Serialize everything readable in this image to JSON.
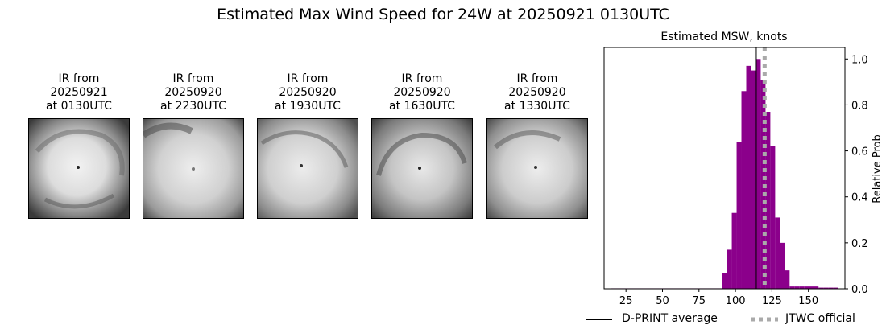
{
  "suptitle": "Estimated Max Wind Speed for 24W at 20250921 0130UTC",
  "panels": [
    {
      "line1": "IR from",
      "line2": "20250921",
      "line3": "at 0130UTC"
    },
    {
      "line1": "IR from",
      "line2": "20250920",
      "line3": "at 2230UTC"
    },
    {
      "line1": "IR from",
      "line2": "20250920",
      "line3": "at 1930UTC"
    },
    {
      "line1": "IR from",
      "line2": "20250920",
      "line3": "at 1630UTC"
    },
    {
      "line1": "IR from",
      "line2": "20250920",
      "line3": "at 1330UTC"
    }
  ],
  "chart_data": {
    "type": "bar",
    "title": "Estimated MSW, knots",
    "xlabel": "",
    "ylabel": "Relative Prob",
    "xlim": [
      10,
      175
    ],
    "ylim": [
      0,
      1.05
    ],
    "xticks": [
      25,
      50,
      75,
      100,
      125,
      150
    ],
    "yticks": [
      0.0,
      0.2,
      0.4,
      0.6,
      0.8,
      1.0
    ],
    "ytick_labels": [
      "0.0",
      "0.2",
      "0.4",
      "0.6",
      "0.8",
      "1.0"
    ],
    "y_axis_side": "right",
    "bar_width": 3.3,
    "bar_color": "#8b008b",
    "bins": [
      15,
      18.3,
      21.6,
      24.9,
      28.2,
      31.5,
      34.8,
      38.1,
      41.4,
      44.7,
      48,
      51.3,
      54.6,
      57.9,
      61.2,
      64.5,
      67.8,
      71.1,
      74.4,
      77.7,
      81,
      84.3,
      87.6,
      90.9,
      94.2,
      97.5,
      100.8,
      104.1,
      107.4,
      110.7,
      114,
      117.3,
      120.6,
      123.9,
      127.2,
      130.5,
      133.8,
      137.1,
      140.4,
      143.7,
      147,
      150.3,
      153.6,
      156.9,
      160.2,
      163.5,
      166.8
    ],
    "values": [
      0.002,
      0.002,
      0.002,
      0.002,
      0.002,
      0.002,
      0.002,
      0.002,
      0.002,
      0.002,
      0.002,
      0.002,
      0.002,
      0.002,
      0.002,
      0.002,
      0.002,
      0.002,
      0.002,
      0.002,
      0.002,
      0.002,
      0.002,
      0.07,
      0.17,
      0.33,
      0.64,
      0.86,
      0.97,
      0.95,
      1.0,
      0.91,
      0.77,
      0.62,
      0.31,
      0.2,
      0.08,
      0.01,
      0.01,
      0.01,
      0.01,
      0.01,
      0.01,
      0.005,
      0.005,
      0.005,
      0.005
    ],
    "dprint_average": 114,
    "jtwc_official": 120,
    "legend": [
      {
        "label": "D-PRINT average",
        "color": "#000000",
        "style": "solid"
      },
      {
        "label": "JTWC official",
        "color": "#aaaaaa",
        "style": "dotted"
      }
    ],
    "legend_placement": "bottom-center"
  }
}
